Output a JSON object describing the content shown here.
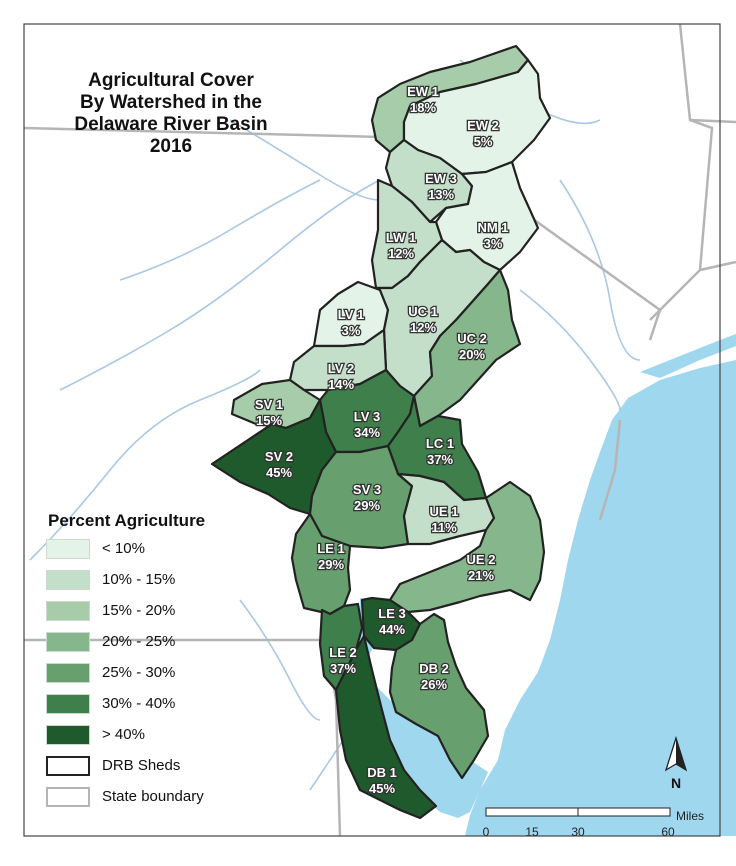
{
  "title_lines": [
    "Agricultural Cover",
    "By Watershed in the",
    "Delaware River Basin",
    "2016"
  ],
  "legend": {
    "title": "Percent Agriculture",
    "classes": [
      {
        "label": "< 10%",
        "color": "#e3f3e7"
      },
      {
        "label": "10% - 15%",
        "color": "#c4dfc9"
      },
      {
        "label": "15% - 20%",
        "color": "#a6cca9"
      },
      {
        "label": "20% - 25%",
        "color": "#86b68b"
      },
      {
        "label": "25% - 30%",
        "color": "#67a06e"
      },
      {
        "label": "30% - 40%",
        "color": "#3e7f4b"
      },
      {
        "label": "> 40%",
        "color": "#1f5a2c"
      }
    ],
    "outline_items": [
      {
        "label": "DRB Sheds",
        "color": "#222222"
      },
      {
        "label": "State boundary",
        "color": "#b5b5b5"
      }
    ]
  },
  "watersheds": [
    {
      "code": "EW 1",
      "percent": "18%",
      "color": "#a6cca9"
    },
    {
      "code": "EW 2",
      "percent": "5%",
      "color": "#e3f3e7"
    },
    {
      "code": "EW 3",
      "percent": "13%",
      "color": "#c4dfc9"
    },
    {
      "code": "NM 1",
      "percent": "3%",
      "color": "#e3f3e7"
    },
    {
      "code": "LW 1",
      "percent": "12%",
      "color": "#c4dfc9"
    },
    {
      "code": "LV 1",
      "percent": "3%",
      "color": "#e3f3e7"
    },
    {
      "code": "UC 1",
      "percent": "12%",
      "color": "#c4dfc9"
    },
    {
      "code": "UC 2",
      "percent": "20%",
      "color": "#86b68b"
    },
    {
      "code": "LV 2",
      "percent": "14%",
      "color": "#c4dfc9"
    },
    {
      "code": "SV 1",
      "percent": "15%",
      "color": "#a6cca9"
    },
    {
      "code": "LV 3",
      "percent": "34%",
      "color": "#3e7f4b"
    },
    {
      "code": "SV 2",
      "percent": "45%",
      "color": "#1f5a2c"
    },
    {
      "code": "LC 1",
      "percent": "37%",
      "color": "#3e7f4b"
    },
    {
      "code": "SV 3",
      "percent": "29%",
      "color": "#67a06e"
    },
    {
      "code": "UE 1",
      "percent": "11%",
      "color": "#c4dfc9"
    },
    {
      "code": "UE 2",
      "percent": "21%",
      "color": "#86b68b"
    },
    {
      "code": "LE 1",
      "percent": "29%",
      "color": "#67a06e"
    },
    {
      "code": "LE 3",
      "percent": "44%",
      "color": "#1f5a2c"
    },
    {
      "code": "LE 2",
      "percent": "37%",
      "color": "#3e7f4b"
    },
    {
      "code": "DB 2",
      "percent": "26%",
      "color": "#67a06e"
    },
    {
      "code": "DB 1",
      "percent": "45%",
      "color": "#1f5a2c"
    }
  ],
  "scale_bar": {
    "unit": "Miles",
    "ticks": [
      "0",
      "15",
      "30",
      "60"
    ]
  },
  "north_arrow": {
    "label": "N",
    "icon": "north-arrow-icon"
  },
  "colors": {
    "water": "#9fd7ee",
    "river": "#a9c8e6",
    "state_boundary": "#b5b5b5",
    "shed_outline": "#222222"
  }
}
